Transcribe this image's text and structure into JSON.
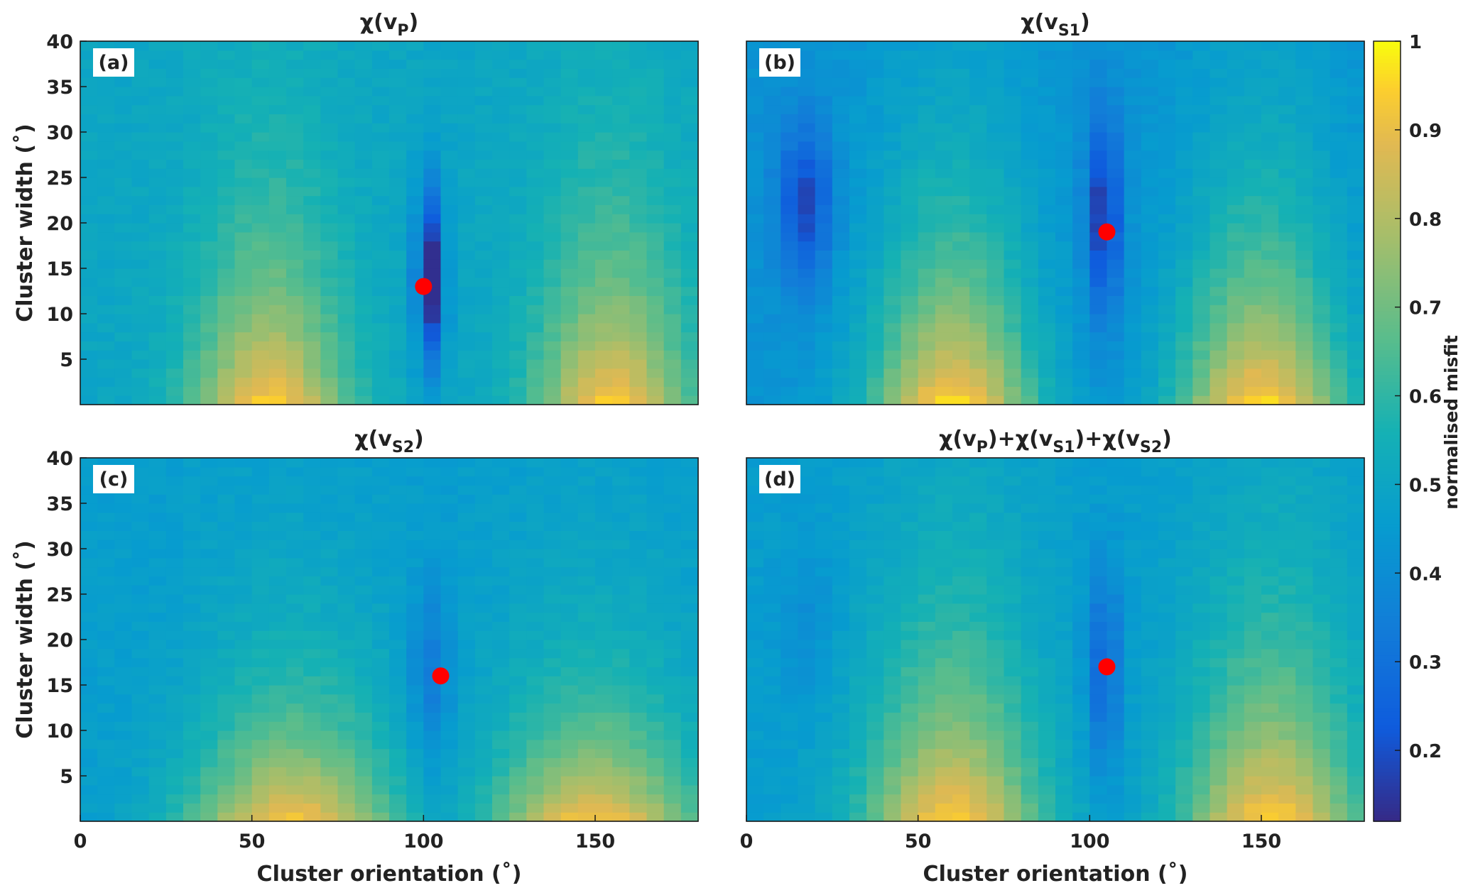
{
  "figure": {
    "colorbar_label": "normalised misfit",
    "colorbar_ticks": [
      "0.2",
      "0.3",
      "0.4",
      "0.5",
      "0.6",
      "0.7",
      "0.8",
      "0.9",
      "1"
    ],
    "colorbar_range": [
      0.12,
      1.0
    ],
    "colormap": "parula",
    "marker_color": "#ff0000"
  },
  "chart_data": [
    {
      "type": "heatmap",
      "panel_label": "(a)",
      "title_parts": [
        "χ(v",
        "P",
        ")"
      ],
      "xlabel": "",
      "ylabel": "Cluster width (˚)",
      "xlim": [
        0,
        180
      ],
      "ylim": [
        0,
        40
      ],
      "xticks": [],
      "yticks": [
        "5",
        "10",
        "15",
        "20",
        "25",
        "30",
        "35",
        "40"
      ],
      "grid": "5 x 1 (orientation x width)",
      "minimum": {
        "x": 100,
        "y": 13
      },
      "params": {
        "base": 0.5,
        "humpAmp": 0.45,
        "c1": 55,
        "c2": 155,
        "humpW": 22,
        "humpD": 16,
        "valleyX": 102,
        "valleyW": 4,
        "valleyD": 0.42,
        "valleyY": 14,
        "valleyYW": 10,
        "valley2X": 0,
        "valley2D": 0
      }
    },
    {
      "type": "heatmap",
      "panel_label": "(b)",
      "title_parts": [
        "χ(v",
        "S1",
        ")"
      ],
      "xlabel": "",
      "ylabel": "",
      "xlim": [
        0,
        180
      ],
      "ylim": [
        0,
        40
      ],
      "xticks": [],
      "yticks": [],
      "grid": "5 x 1 (orientation x width)",
      "minimum": {
        "x": 105,
        "y": 19
      },
      "params": {
        "base": 0.42,
        "humpAmp": 0.55,
        "c1": 60,
        "c2": 150,
        "humpW": 24,
        "humpD": 18,
        "valleyX": 104,
        "valleyW": 5,
        "valleyD": 0.28,
        "valleyY": 21,
        "valleyYW": 11,
        "valley2X": 17,
        "valley2D": 0.24
      }
    },
    {
      "type": "heatmap",
      "panel_label": "(c)",
      "title_parts": [
        "χ(v",
        "S2",
        ")"
      ],
      "xlabel": "Cluster orientation (˚)",
      "ylabel": "Cluster width (˚)",
      "xlim": [
        0,
        180
      ],
      "ylim": [
        0,
        40
      ],
      "xticks": [
        "0",
        "50",
        "100",
        "150"
      ],
      "yticks": [
        "5",
        "10",
        "15",
        "20",
        "25",
        "30",
        "35",
        "40"
      ],
      "grid": "5 x 1 (orientation x width)",
      "minimum": {
        "x": 105,
        "y": 16
      },
      "params": {
        "base": 0.46,
        "humpAmp": 0.48,
        "c1": 62,
        "c2": 150,
        "humpW": 30,
        "humpD": 12,
        "valleyX": 102,
        "valleyW": 6,
        "valleyD": 0.14,
        "valleyY": 16,
        "valleyYW": 10,
        "valley2X": 0,
        "valley2D": 0
      }
    },
    {
      "type": "heatmap",
      "panel_label": "(d)",
      "title_parts": [
        "χ(v",
        "P",
        ")+χ(v",
        "S1",
        ")+χ(v",
        "S2",
        ")"
      ],
      "xlabel": "Cluster orientation (˚)",
      "ylabel": "",
      "xlim": [
        0,
        180
      ],
      "ylim": [
        0,
        40
      ],
      "xticks": [
        "0",
        "50",
        "100",
        "150"
      ],
      "yticks": [],
      "grid": "5 x 1 (orientation x width)",
      "minimum": {
        "x": 105,
        "y": 17
      },
      "params": {
        "base": 0.46,
        "humpAmp": 0.5,
        "c1": 60,
        "c2": 153,
        "humpW": 25,
        "humpD": 17,
        "valleyX": 104,
        "valleyW": 5,
        "valleyD": 0.2,
        "valleyY": 17,
        "valleyYW": 11,
        "valley2X": 18,
        "valley2D": 0.06
      }
    }
  ]
}
